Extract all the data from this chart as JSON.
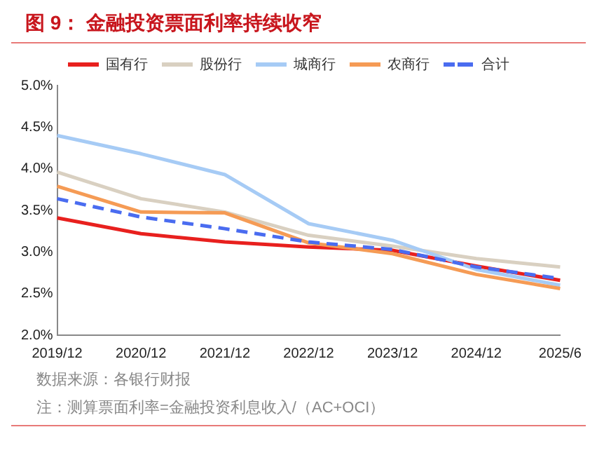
{
  "chart_data": {
    "type": "line",
    "title": "图 9：  金融投资票面利率持续收窄",
    "categories": [
      "2019/12",
      "2020/12",
      "2021/12",
      "2022/12",
      "2023/12",
      "2024/12",
      "2025/6"
    ],
    "series": [
      {
        "name": "国有行",
        "color": "#e8201e",
        "values": [
          3.41,
          3.22,
          3.12,
          3.06,
          3.02,
          2.83,
          2.66
        ]
      },
      {
        "name": "股份行",
        "color": "#d9d0c1",
        "values": [
          3.96,
          3.64,
          3.48,
          3.2,
          3.07,
          2.92,
          2.82
        ]
      },
      {
        "name": "城商行",
        "color": "#a6cbf5",
        "values": [
          4.4,
          4.18,
          3.93,
          3.34,
          3.14,
          2.79,
          2.6
        ]
      },
      {
        "name": "农商行",
        "color": "#f59b55",
        "values": [
          3.79,
          3.48,
          3.47,
          3.11,
          2.98,
          2.73,
          2.56
        ]
      },
      {
        "name": "合计",
        "color": "#4a6cf0",
        "values": [
          3.64,
          3.42,
          3.28,
          3.12,
          3.03,
          2.82,
          2.68
        ],
        "line_style": "dashed"
      }
    ],
    "ylim": [
      2.0,
      5.0
    ],
    "yticks": [
      {
        "value": 2.0,
        "label": "2.0%"
      },
      {
        "value": 2.5,
        "label": "2.5%"
      },
      {
        "value": 3.0,
        "label": "3.0%"
      },
      {
        "value": 3.5,
        "label": "3.5%"
      },
      {
        "value": 4.0,
        "label": "4.0%"
      },
      {
        "value": 4.5,
        "label": "4.5%"
      },
      {
        "value": 5.0,
        "label": "5.0%"
      }
    ],
    "grid": false,
    "legend": "top",
    "marker": "none",
    "annotations": [
      "数据来源：各银行财报",
      "注：测算票面利率=金融投资利息收入/（AC+OCI）"
    ]
  }
}
